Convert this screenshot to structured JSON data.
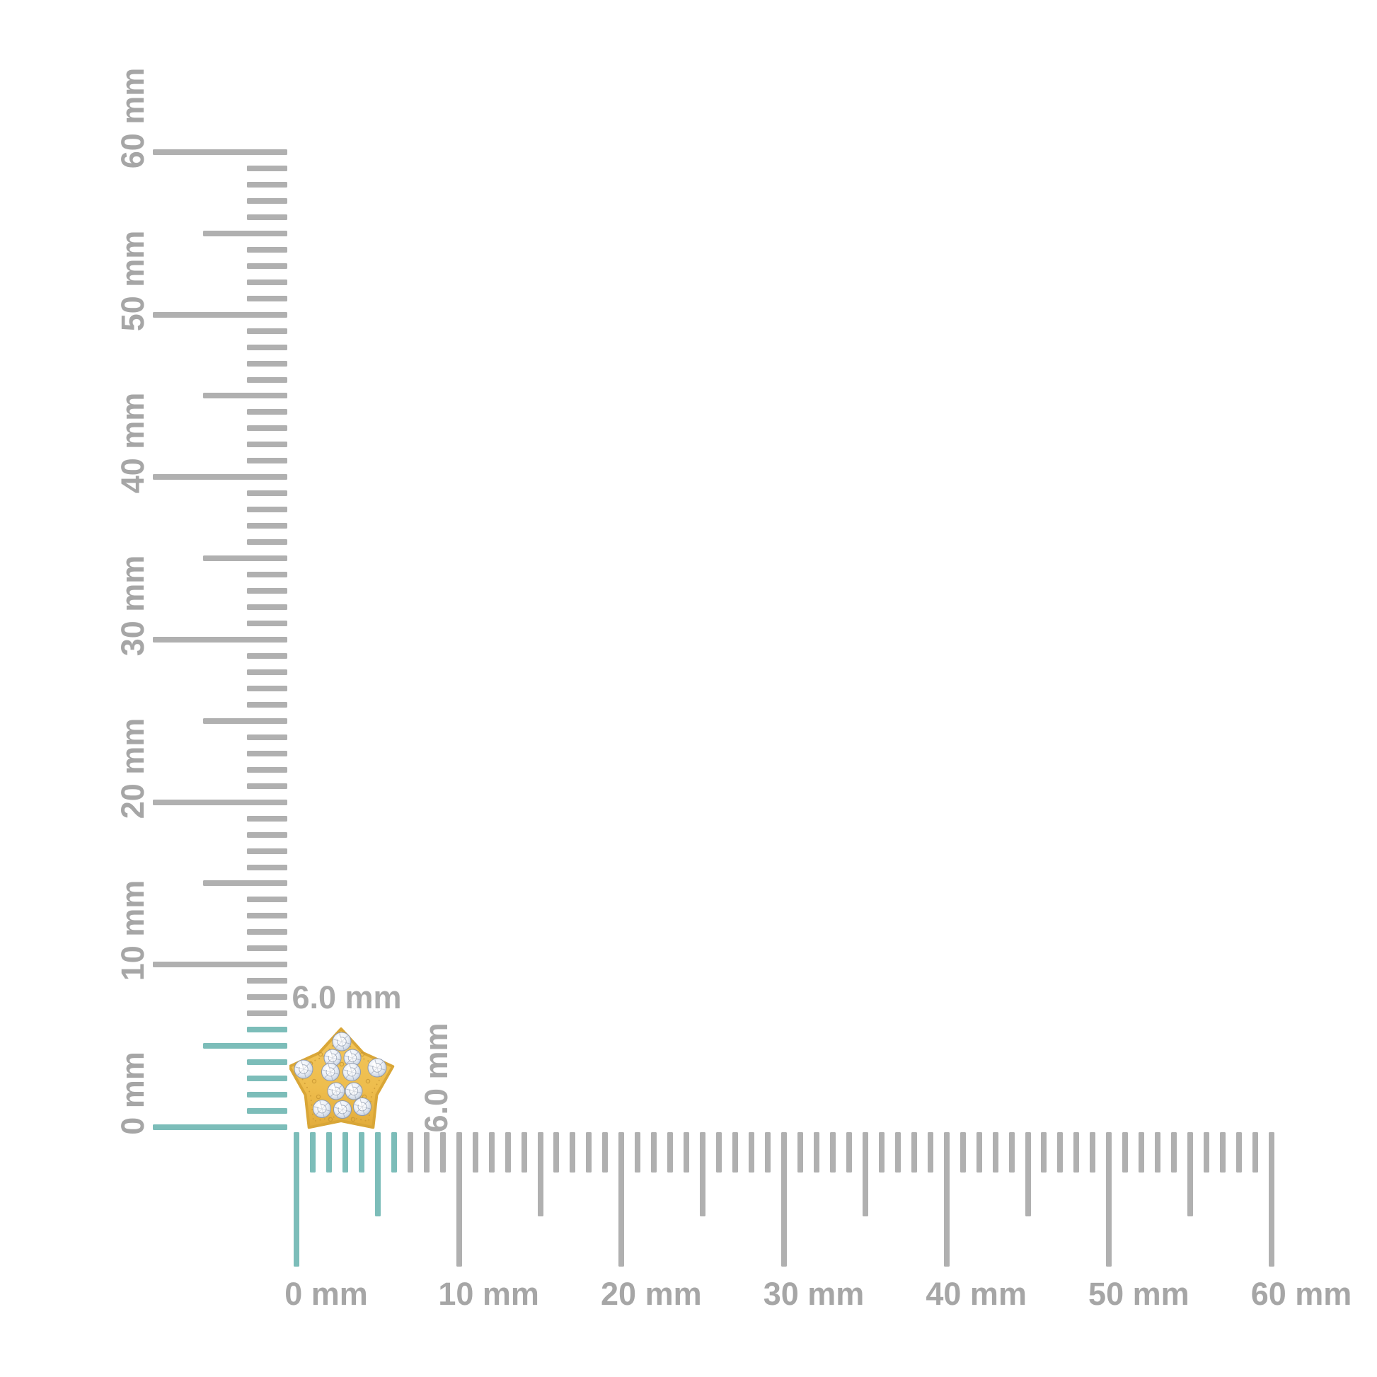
{
  "page": {
    "background_color": "#ffffff",
    "description": "Jewelry product size diagram with millimeter rulers"
  },
  "measurement": {
    "unit": "mm",
    "ruler_min_mm": 0,
    "ruler_max_mm": 60,
    "tick_step_mm": 1,
    "half_step_mm": 5,
    "major_step_mm": 10,
    "highlighted_range_mm": [
      0,
      6
    ],
    "object_width_label": "6.0 mm",
    "object_height_label": "6.0 mm"
  },
  "vertical_ruler": {
    "labels": [
      "0 mm",
      "10 mm",
      "20 mm",
      "30 mm",
      "40 mm",
      "50 mm",
      "60 mm"
    ]
  },
  "horizontal_ruler": {
    "labels": [
      "0 mm",
      "10 mm",
      "20 mm",
      "30 mm",
      "40 mm",
      "50 mm",
      "60 mm"
    ]
  },
  "product": {
    "icon": "star-diamond-stud-icon",
    "shape": "five-point star with pave diamonds",
    "stone_count": 12
  },
  "colors": {
    "tick_gray": "#b0b0b0",
    "tick_highlight_teal": "#7cbdb9",
    "label_gray": "#a6a6a6",
    "dimension_label_gray": "#a9a9a9",
    "gold": "#eebd4d",
    "gold_dark": "#d9a637",
    "gold_engraving": "#c89733",
    "diamond_light": "#eef2f8",
    "diamond_shade": "#c3cede",
    "diamond_line": "#8e99ac"
  }
}
